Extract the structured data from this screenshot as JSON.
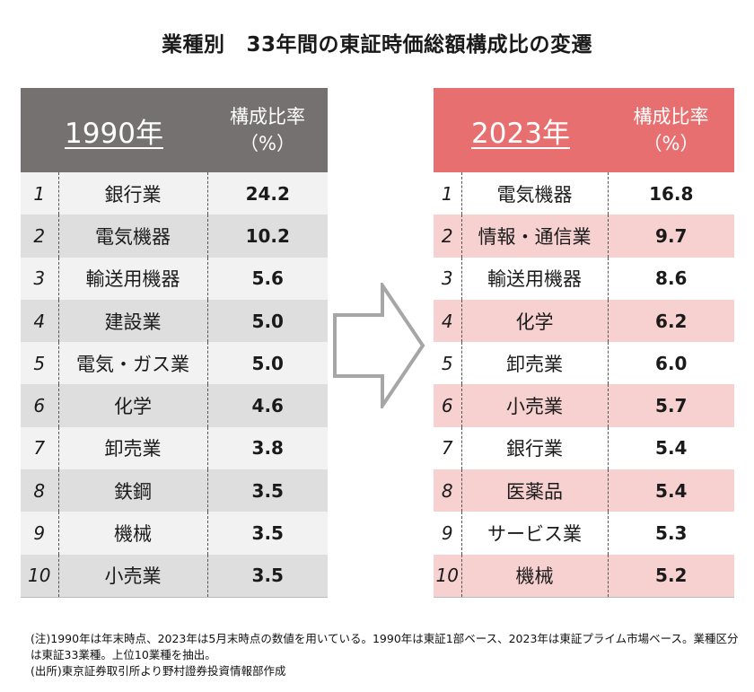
{
  "title": {
    "part1": "業種別",
    "part2": "33年間の東証時価総額構成比の変遷"
  },
  "table_1990": {
    "year": "1990年",
    "ratio_line1": "構成比率",
    "ratio_line2": "（%）",
    "rows": [
      {
        "rank": "1",
        "industry": "銀行業",
        "value": "24.2"
      },
      {
        "rank": "2",
        "industry": "電気機器",
        "value": "10.2"
      },
      {
        "rank": "3",
        "industry": "輸送用機器",
        "value": "5.6"
      },
      {
        "rank": "4",
        "industry": "建設業",
        "value": "5.0"
      },
      {
        "rank": "5",
        "industry": "電気・ガス業",
        "value": "5.0"
      },
      {
        "rank": "6",
        "industry": "化学",
        "value": "4.6"
      },
      {
        "rank": "7",
        "industry": "卸売業",
        "value": "3.8"
      },
      {
        "rank": "8",
        "industry": "鉄鋼",
        "value": "3.5"
      },
      {
        "rank": "9",
        "industry": "機械",
        "value": "3.5"
      },
      {
        "rank": "10",
        "industry": "小売業",
        "value": "3.5"
      }
    ]
  },
  "table_2023": {
    "year": "2023年",
    "ratio_line1": "構成比率",
    "ratio_line2": "（%）",
    "rows": [
      {
        "rank": "1",
        "industry": "電気機器",
        "value": "16.8"
      },
      {
        "rank": "2",
        "industry": "情報・通信業",
        "value": "9.7"
      },
      {
        "rank": "3",
        "industry": "輸送用機器",
        "value": "8.6"
      },
      {
        "rank": "4",
        "industry": "化学",
        "value": "6.2"
      },
      {
        "rank": "5",
        "industry": "卸売業",
        "value": "6.0"
      },
      {
        "rank": "6",
        "industry": "小売業",
        "value": "5.7"
      },
      {
        "rank": "7",
        "industry": "銀行業",
        "value": "5.4"
      },
      {
        "rank": "8",
        "industry": "医薬品",
        "value": "5.4"
      },
      {
        "rank": "9",
        "industry": "サービス業",
        "value": "5.3"
      },
      {
        "rank": "10",
        "industry": "機械",
        "value": "5.2"
      }
    ]
  },
  "notes": {
    "line1": "(注)1990年は年末時点、2023年は5月末時点の数値を用いている。1990年は東証1部ベース、2023年は東証プライム市場ベース。業種区分は東証33業種。上位10業種を抽出。",
    "line2": "(出所)東京証券取引所より野村證券投資情報部作成"
  },
  "colors": {
    "header_1990": "#767171",
    "header_2023": "#e86f6f",
    "stripe_1990": "#dedede",
    "stripe_2023": "#f7d0d0",
    "arrow_fill": "#ffffff",
    "arrow_stroke": "#a6a6a6"
  },
  "icons": {
    "arrow": "right-arrow-icon"
  }
}
